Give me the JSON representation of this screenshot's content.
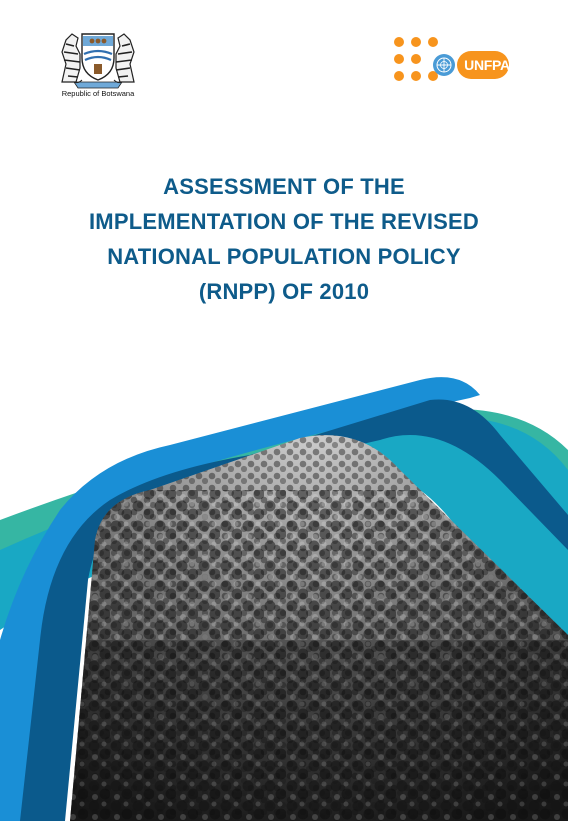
{
  "header": {
    "coat_of_arms": {
      "icon": "botswana-coat-of-arms-icon",
      "caption": "Republic of Botswana"
    },
    "unfpa_logo": {
      "icon": "un-emblem-icon",
      "wordmark": "UNFPA"
    }
  },
  "title": {
    "lines": [
      "ASSESSMENT OF THE",
      "IMPLEMENTATION OF THE REVISED",
      "NATIONAL POPULATION POLICY",
      "(RNPP) OF 2010"
    ]
  },
  "colors": {
    "title": "#0e5b8a",
    "band_dark": "#0b5a8c",
    "band_blue": "#1a8fd6",
    "band_teal": "#19a8c4",
    "band_green": "#36b6a3",
    "unfpa_orange": "#f7941d"
  },
  "cover_photo": {
    "icon": "crowd-photo",
    "style": "grayscale"
  }
}
